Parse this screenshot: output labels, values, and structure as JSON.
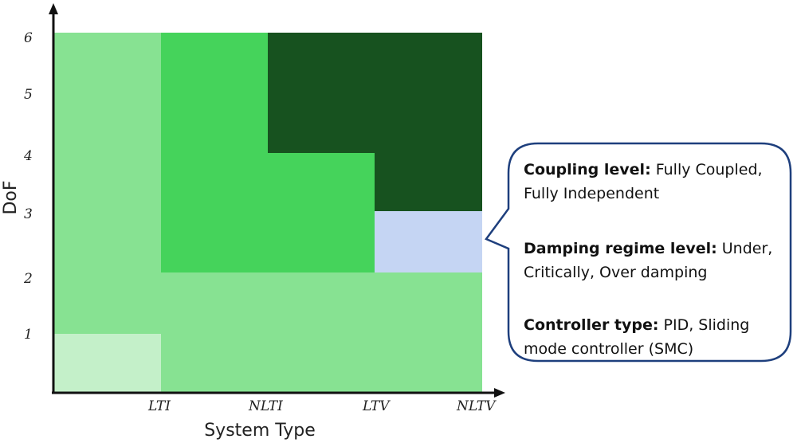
{
  "axes": {
    "x_title": "System Type",
    "y_title": "DoF",
    "x_ticks": [
      "LTI",
      "NLTI",
      "LTV",
      "NLTV"
    ],
    "y_ticks": [
      "1",
      "2",
      "3",
      "4",
      "5",
      "6"
    ]
  },
  "colors": {
    "very_light_green": "#c4f0c9",
    "light_green": "#87e292",
    "medium_green": "#45d35b",
    "dark_green": "#17521f",
    "light_blue": "#c5d5f3",
    "callout_border": "#1e3f7d",
    "axis": "#111111"
  },
  "callout": {
    "coupling": {
      "label": "Coupling level:",
      "text_line1": " Fully Coupled,",
      "text_line2": "Fully Independent"
    },
    "damping": {
      "label": "Damping regime level:",
      "text_line1": " Under,",
      "text_line2": "Critically, Over damping"
    },
    "controller": {
      "label": "Controller type:",
      "text_line1": " PID, Sliding",
      "text_line2": "mode controller (SMC)"
    }
  }
}
